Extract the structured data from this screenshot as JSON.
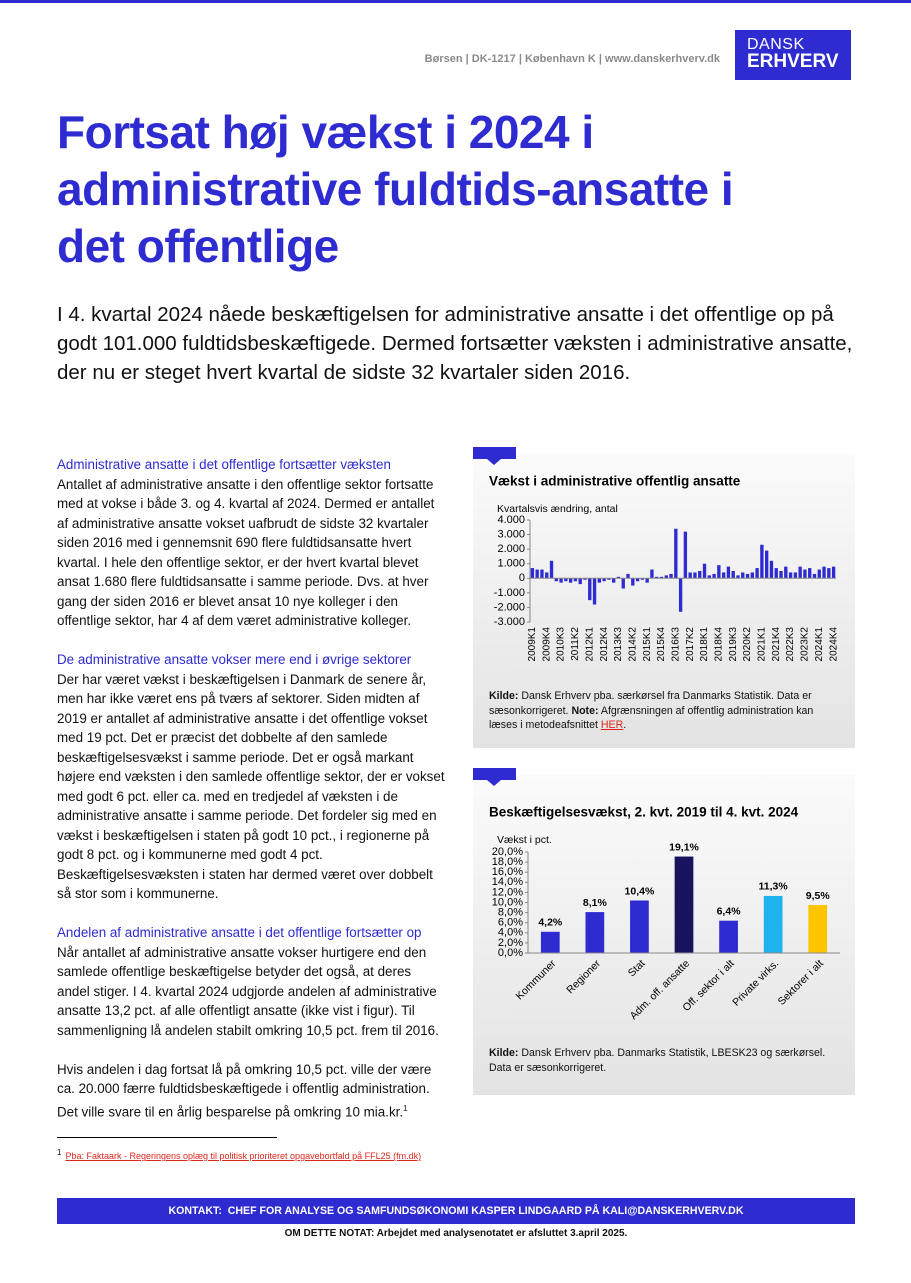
{
  "header": {
    "address": "Børsen | DK-1217 | København K | www.danskerhverv.dk",
    "logo": [
      "DANSK",
      "ERHVERV"
    ]
  },
  "title": "Fortsat høj vækst i 2024 i administrative fuldtids-ansatte i det offentlige",
  "lead": "I 4. kvartal 2024 nåede beskæftigelsen for administrative ansatte i det offentlige op på godt 101.000 fuldtidsbeskæftigede. Dermed fortsætter væksten i administrative ansatte, der nu er steget hvert kvartal de sidste 32 kvartaler siden 2016.",
  "sections": [
    {
      "heading": "Administrative ansatte i det offentlige fortsætter væksten",
      "paragraphs": [
        "Antallet af administrative ansatte i den offentlige sektor fortsatte med at vokse i både 3. og 4. kvartal af 2024. Dermed er antallet af administrative ansatte vokset uafbrudt de sidste 32 kvartaler siden 2016 med i gennemsnit 690 flere fuldtidsansatte hvert kvartal. I hele den offentlige sektor, er der hvert kvartal blevet ansat 1.680 flere fuldtidsansatte i samme periode. Dvs. at hver gang der siden 2016 er blevet ansat 10 nye kolleger i den offentlige sektor, har 4 af dem været administrative kolleger."
      ]
    },
    {
      "heading": "De administrative ansatte vokser mere end i øvrige sektorer",
      "paragraphs": [
        "Der har været vækst i beskæftigelsen i Danmark de senere år, men har ikke været ens på tværs af sektorer. Siden midten af 2019 er antallet af administrative ansatte i det offentlige vokset med 19 pct. Det er præcist det dobbelte af den samlede beskæftigelsesvækst i samme periode. Det er også markant højere end væksten i den samlede offentlige sektor, der er vokset med godt 6 pct. eller ca. med en tredjedel af væksten i de administrative ansatte i samme periode. Det fordeler sig med en vækst i beskæftigelsen i staten på godt 10 pct., i regionerne på godt 8 pct. og i kommunerne med godt 4 pct. Beskæftigelsesvæksten i staten har dermed været over dobbelt så stor som i kommunerne."
      ]
    },
    {
      "heading": "Andelen af administrative ansatte i det offentlige fortsætter op",
      "paragraphs": [
        "Når antallet af administrative ansatte vokser hurtigere end den samlede offentlige beskæftigelse betyder det også, at deres andel stiger. I 4. kvartal 2024 udgjorde andelen af administrative ansatte 13,2 pct. af alle offentligt ansatte (ikke vist i figur). Til sammenligning lå andelen stabilt omkring 10,5 pct. frem til 2016.",
        "Hvis andelen i dag fortsat lå på omkring 10,5 pct. ville der være ca. 20.000 færre fuldtidsbeskæftigede i offentlig administration. Det ville svare til en årlig besparelse på omkring 10 mia.kr."
      ],
      "footnote_ref": "1"
    }
  ],
  "chart_data": [
    {
      "type": "bar",
      "title": "Vækst i administrative offentlig ansatte",
      "ylabel": "Kvartalsvis ændring, antal",
      "categories": [
        "2009K1",
        null,
        null,
        "2009K4",
        null,
        null,
        "2010K3",
        null,
        null,
        "2011K2",
        null,
        null,
        "2012K1",
        null,
        null,
        "2012K4",
        null,
        null,
        "2013K3",
        null,
        null,
        "2014K2",
        null,
        null,
        "2015K1",
        null,
        null,
        "2015K4",
        null,
        null,
        "2016K3",
        null,
        null,
        "2017K2",
        null,
        null,
        "2018K1",
        null,
        null,
        "2018K4",
        null,
        null,
        "2019K3",
        null,
        null,
        "2020K2",
        null,
        null,
        "2021K1",
        null,
        null,
        "2021K4",
        null,
        null,
        "2022K3",
        null,
        null,
        "2023K2",
        null,
        null,
        "2024K1",
        null,
        null,
        "2024K4"
      ],
      "values": [
        700,
        600,
        600,
        400,
        1200,
        -200,
        -300,
        -200,
        -300,
        -200,
        -400,
        -100,
        -1500,
        -1800,
        -300,
        -200,
        -100,
        -300,
        100,
        -700,
        300,
        -500,
        -200,
        -100,
        -300,
        600,
        100,
        100,
        200,
        300,
        3400,
        -2300,
        3200,
        400,
        400,
        500,
        1000,
        200,
        300,
        900,
        400,
        800,
        500,
        200,
        400,
        300,
        400,
        700,
        2300,
        1900,
        1200,
        700,
        500,
        800,
        400,
        400,
        800,
        600,
        700,
        300,
        600,
        800,
        700,
        800
      ],
      "color": "#2e2bd0",
      "ylim": [
        -3000,
        4000
      ],
      "yticks": [
        {
          "value": 4000,
          "label": "4.000"
        },
        {
          "value": 3000,
          "label": "3.000"
        },
        {
          "value": 2000,
          "label": "2.000"
        },
        {
          "value": 1000,
          "label": "1.000"
        },
        0,
        {
          "value": -1000,
          "label": "-1.000"
        },
        {
          "value": -2000,
          "label": "-2.000"
        },
        {
          "value": -3000,
          "label": "-3.000"
        }
      ],
      "source": [
        {
          "text": "Kilde:",
          "bold": true
        },
        {
          "text": " Dansk Erhverv pba. særkørsel fra Danmarks Statistik. Data er sæsonkorrigeret. "
        },
        {
          "text": "Note:",
          "bold": true
        },
        {
          "text": " Afgrænsningen af offentlig administration kan læses i metodeafsnittet "
        },
        {
          "text": "HER",
          "link": true
        },
        {
          "text": "."
        }
      ]
    },
    {
      "type": "bar",
      "title": "Beskæftigelsesvækst, 2. kvt. 2019 til 4. kvt. 2024",
      "ylabel": "Vækst i pct.",
      "categories": [
        "Kommuner",
        "Regioner",
        "Stat",
        "Adm. off. ansatte",
        "Off. sektor i alt",
        "Private virks.",
        "Sektorer i alt"
      ],
      "values": [
        4.2,
        8.1,
        10.4,
        19.1,
        6.4,
        11.3,
        9.5
      ],
      "value_labels": [
        "4,2%",
        "8,1%",
        "10,4%",
        "19,1%",
        "6,4%",
        "11,3%",
        "9,5%"
      ],
      "colors": [
        "#2e2bd0",
        "#2e2bd0",
        "#2e2bd0",
        "#17135f",
        "#2e2bd0",
        "#1fb3ee",
        "#ffc400"
      ],
      "ylim": [
        0,
        20
      ],
      "yticks": [
        {
          "value": 20,
          "label": "20,0%"
        },
        {
          "value": 18,
          "label": "18,0%"
        },
        {
          "value": 16,
          "label": "16,0%"
        },
        {
          "value": 14,
          "label": "14,0%"
        },
        {
          "value": 12,
          "label": "12,0%"
        },
        {
          "value": 10,
          "label": "10,0%"
        },
        {
          "value": 8,
          "label": "8,0%"
        },
        {
          "value": 6,
          "label": "6,0%"
        },
        {
          "value": 4,
          "label": "4,0%"
        },
        {
          "value": 2,
          "label": "2,0%"
        },
        {
          "value": 0,
          "label": "0,0%"
        }
      ],
      "source": [
        {
          "text": "Kilde:",
          "bold": true
        },
        {
          "text": " Dansk Erhverv pba. Danmarks Statistik, LBESK23 og særkørsel. Data er sæsonkorrigeret."
        }
      ]
    }
  ],
  "footnote": {
    "number": "1",
    "text": "Pba: Faktaark - Regeringens oplæg til politisk prioriteret opgavebortfald på FFL25 (fm.dk)"
  },
  "contact": "KONTAKT:  CHEF FOR ANALYSE OG SAMFUNDSØKONOMI KASPER LINDGAARD PÅ KALI@DANSKERHVERV.DK",
  "about": "OM DETTE NOTAT: Arbejdet med analysenotatet er afsluttet 3.april 2025."
}
